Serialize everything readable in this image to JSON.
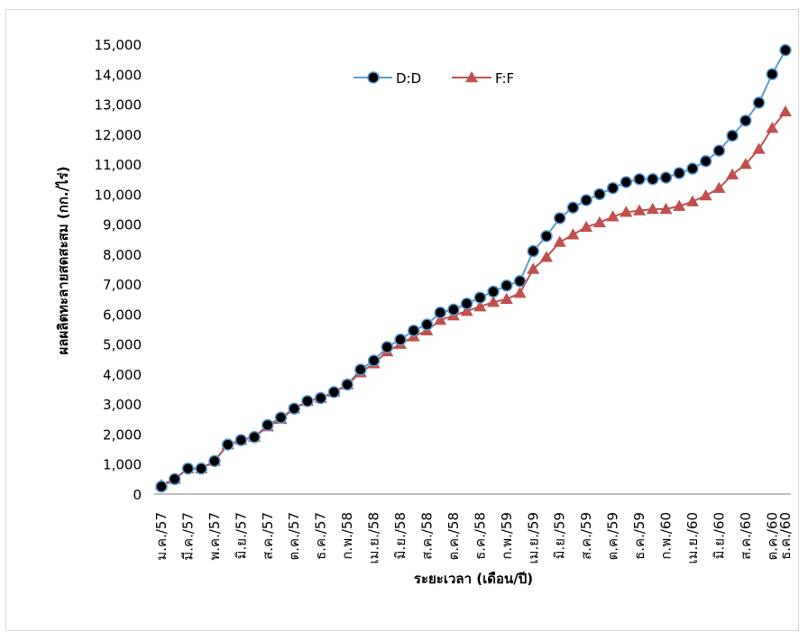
{
  "chart_data": {
    "type": "line",
    "xlabel": "ระยะเวลา (เดือน/ปี)",
    "ylabel": "ผลผลิตทะลายสดสะสม (กก./ไร่)",
    "ylim": [
      0,
      15000
    ],
    "yticks": [
      0,
      1000,
      2000,
      3000,
      4000,
      5000,
      6000,
      7000,
      8000,
      9000,
      10000,
      11000,
      12000,
      13000,
      14000,
      15000
    ],
    "ytick_labels": [
      "0",
      "1,000",
      "2,000",
      "3,000",
      "4,000",
      "5,000",
      "6,000",
      "7,000",
      "8,000",
      "9,000",
      "10,000",
      "11,000",
      "12,000",
      "13,000",
      "14,000",
      "15,000"
    ],
    "x_count": 48,
    "xtick_labels": [
      {
        "i": 0,
        "label": "ม.ค./57"
      },
      {
        "i": 2,
        "label": "มี.ค./57"
      },
      {
        "i": 4,
        "label": "พ.ค./57"
      },
      {
        "i": 6,
        "label": "มิ.ย./57"
      },
      {
        "i": 8,
        "label": "ส.ค./57"
      },
      {
        "i": 10,
        "label": "ต.ค./57"
      },
      {
        "i": 12,
        "label": "ธ.ค./57"
      },
      {
        "i": 14,
        "label": "ก.พ./58"
      },
      {
        "i": 16,
        "label": "เม.ย./58"
      },
      {
        "i": 18,
        "label": "มิ.ย./58"
      },
      {
        "i": 20,
        "label": "ส.ค./58"
      },
      {
        "i": 22,
        "label": "ต.ค./58"
      },
      {
        "i": 24,
        "label": "ธ.ค./58"
      },
      {
        "i": 26,
        "label": "ก.พ./59"
      },
      {
        "i": 28,
        "label": "เม.ย./59"
      },
      {
        "i": 30,
        "label": "มิ.ย./59"
      },
      {
        "i": 32,
        "label": "ส.ค./59"
      },
      {
        "i": 34,
        "label": "ต.ค./59"
      },
      {
        "i": 36,
        "label": "ธ.ค./59"
      },
      {
        "i": 38,
        "label": "ก.พ./60"
      },
      {
        "i": 40,
        "label": "เม.ย./60"
      },
      {
        "i": 42,
        "label": "มิ.ย./60"
      },
      {
        "i": 44,
        "label": "ส.ค./60"
      },
      {
        "i": 46,
        "label": "ต.ค./60"
      },
      {
        "i": 47,
        "label": "ธ.ค./60"
      }
    ],
    "legend": "top-center",
    "grid": false,
    "series": [
      {
        "name": "D:D",
        "color": "#5b9bd5",
        "marker": "circle",
        "values": [
          250,
          500,
          850,
          850,
          1100,
          1650,
          1800,
          1900,
          2300,
          2550,
          2850,
          3100,
          3200,
          3400,
          3650,
          4150,
          4450,
          4900,
          5150,
          5450,
          5650,
          6050,
          6150,
          6350,
          6550,
          6750,
          6950,
          7100,
          8100,
          8600,
          9200,
          9550,
          9800,
          10000,
          10200,
          10400,
          10500,
          10500,
          10550,
          10700,
          10850,
          11100,
          11450,
          11950,
          12450,
          13050,
          14000,
          14800
        ]
      },
      {
        "name": "F:F",
        "color": "#c0504d",
        "marker": "triangle",
        "values": [
          300,
          500,
          850,
          850,
          1100,
          1650,
          1800,
          1900,
          2250,
          2500,
          2850,
          3100,
          3200,
          3400,
          3650,
          4050,
          4350,
          4750,
          5000,
          5250,
          5450,
          5800,
          5950,
          6100,
          6250,
          6400,
          6500,
          6700,
          7500,
          7900,
          8400,
          8650,
          8900,
          9050,
          9250,
          9400,
          9450,
          9500,
          9500,
          9600,
          9750,
          9950,
          10200,
          10650,
          11000,
          11500,
          12200,
          12750
        ]
      }
    ]
  }
}
